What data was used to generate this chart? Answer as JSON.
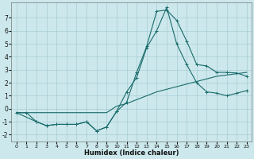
{
  "xlabel": "Humidex (Indice chaleur)",
  "bg_color": "#cce8ec",
  "grid_color": "#a8cdd4",
  "line_color": "#1a6b6b",
  "xlim": [
    -0.5,
    23.5
  ],
  "ylim": [
    -2.5,
    8.2
  ],
  "xticks": [
    0,
    1,
    2,
    3,
    4,
    5,
    6,
    7,
    8,
    9,
    10,
    11,
    12,
    13,
    14,
    15,
    16,
    17,
    18,
    19,
    20,
    21,
    22,
    23
  ],
  "yticks": [
    -2,
    -1,
    0,
    1,
    2,
    3,
    4,
    5,
    6,
    7
  ],
  "series1_x": [
    0,
    1,
    2,
    3,
    4,
    5,
    6,
    7,
    8,
    9,
    10,
    11,
    12,
    13,
    14,
    15,
    16,
    17,
    18,
    19,
    20,
    21,
    22,
    23
  ],
  "series1_y": [
    -0.3,
    -0.3,
    -0.3,
    -0.3,
    -0.3,
    -0.3,
    -0.3,
    -0.3,
    -0.3,
    -0.3,
    0.2,
    0.4,
    0.7,
    1.0,
    1.3,
    1.5,
    1.7,
    1.9,
    2.1,
    2.3,
    2.5,
    2.6,
    2.7,
    2.8
  ],
  "series2_x": [
    0,
    1,
    2,
    3,
    4,
    5,
    6,
    7,
    8,
    9,
    10,
    11,
    12,
    13,
    14,
    15,
    16,
    17,
    18,
    19,
    20,
    21,
    22,
    23
  ],
  "series2_y": [
    -0.3,
    -0.3,
    -1.0,
    -1.3,
    -1.2,
    -1.2,
    -1.2,
    -1.0,
    -1.7,
    -1.4,
    -0.2,
    0.5,
    2.8,
    4.8,
    7.5,
    7.6,
    6.8,
    5.2,
    3.4,
    3.3,
    2.8,
    2.8,
    2.75,
    2.5
  ],
  "series3_x": [
    0,
    2,
    3,
    4,
    5,
    6,
    7,
    8,
    9,
    10,
    11,
    12,
    13,
    14,
    15,
    16,
    17,
    18,
    19,
    20,
    21,
    22,
    23
  ],
  "series3_y": [
    -0.3,
    -1.0,
    -1.3,
    -1.2,
    -1.2,
    -1.2,
    -1.0,
    -1.7,
    -1.4,
    -0.2,
    1.3,
    2.4,
    4.7,
    6.0,
    7.8,
    5.0,
    3.4,
    2.0,
    1.3,
    1.2,
    1.0,
    1.2,
    1.4
  ]
}
